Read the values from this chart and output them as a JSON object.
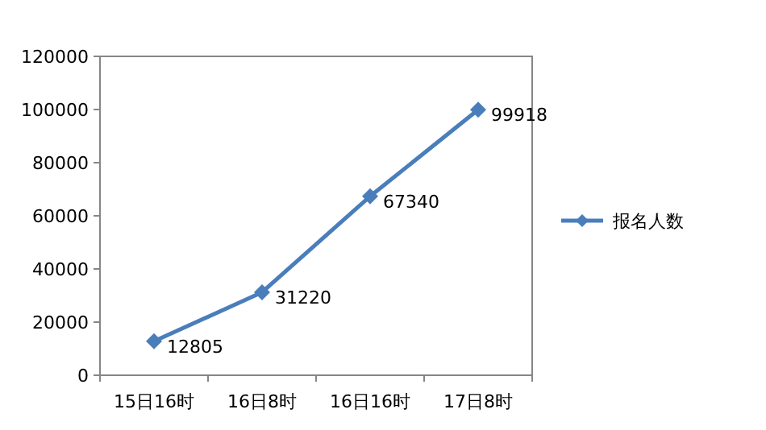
{
  "chart_data": {
    "type": "line",
    "categories": [
      "15日16时",
      "16日8时",
      "16日16时",
      "17日8时"
    ],
    "series": [
      {
        "name": "报名人数",
        "color": "#4a7ebb",
        "values": [
          12805,
          31220,
          67340,
          99918
        ]
      }
    ],
    "ylim": [
      0,
      120000
    ],
    "yticks": [
      0,
      20000,
      40000,
      60000,
      80000,
      100000,
      120000
    ],
    "data_labels": true,
    "legend": "right",
    "marker": "diamond",
    "line_style": "solid",
    "grid": false
  }
}
